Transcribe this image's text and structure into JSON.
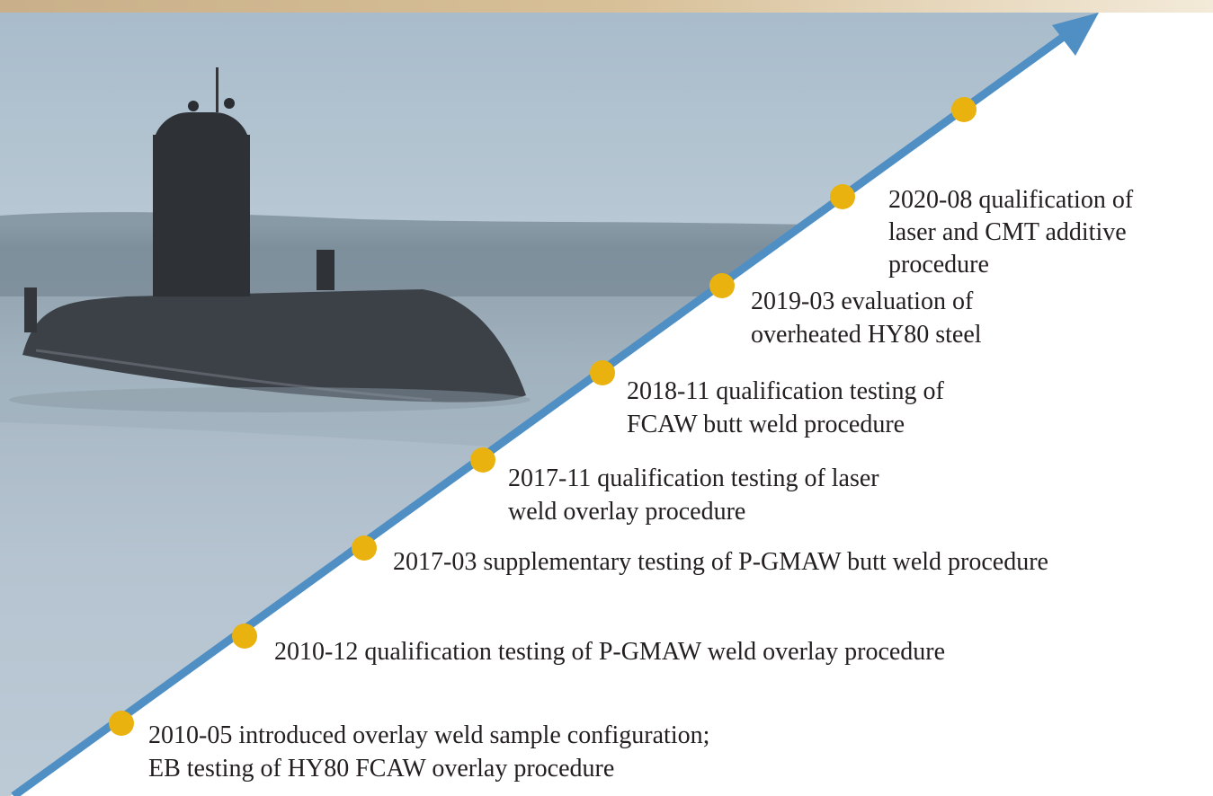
{
  "milestones": [
    {
      "lines": [
        "2010-05 introduced overlay weld sample configuration;",
        "EB testing of HY80 FCAW overlay procedure"
      ]
    },
    {
      "lines": [
        "2010-12 qualification testing of P-GMAW weld overlay procedure"
      ]
    },
    {
      "lines": [
        "2017-03 supplementary testing of P-GMAW butt weld procedure"
      ]
    },
    {
      "lines": [
        "2017-11 qualification testing of laser",
        "weld overlay procedure"
      ]
    },
    {
      "lines": [
        "2018-11 qualification testing of",
        "FCAW butt weld procedure"
      ]
    },
    {
      "lines": [
        "2019-03 evaluation of",
        "overheated HY80 steel"
      ]
    },
    {
      "lines": [
        "2020-08 qualification of",
        "laser and CMT additive",
        "procedure"
      ]
    }
  ]
}
